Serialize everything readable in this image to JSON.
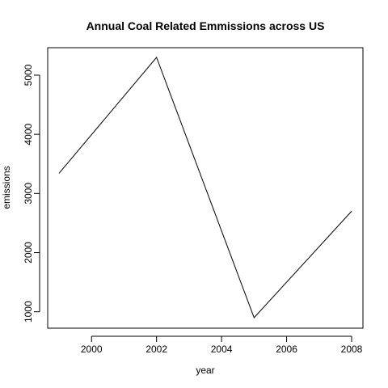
{
  "chart_data": {
    "type": "line",
    "title": "Annual Coal Related Emmissions across US",
    "xlabel": "year",
    "ylabel": "emissions",
    "x": [
      1999,
      2002,
      2005,
      2008
    ],
    "y": [
      3340,
      5300,
      900,
      2700
    ],
    "xlim": [
      1999,
      2008
    ],
    "ylim": [
      900,
      5300
    ],
    "xticks": [
      2000,
      2002,
      2004,
      2006,
      2008
    ],
    "yticks": [
      1000,
      2000,
      3000,
      4000,
      5000
    ],
    "grid": false,
    "legend": "none",
    "line_color": "#000000",
    "axis_color": "#000000",
    "background_color": "#ffffff"
  }
}
